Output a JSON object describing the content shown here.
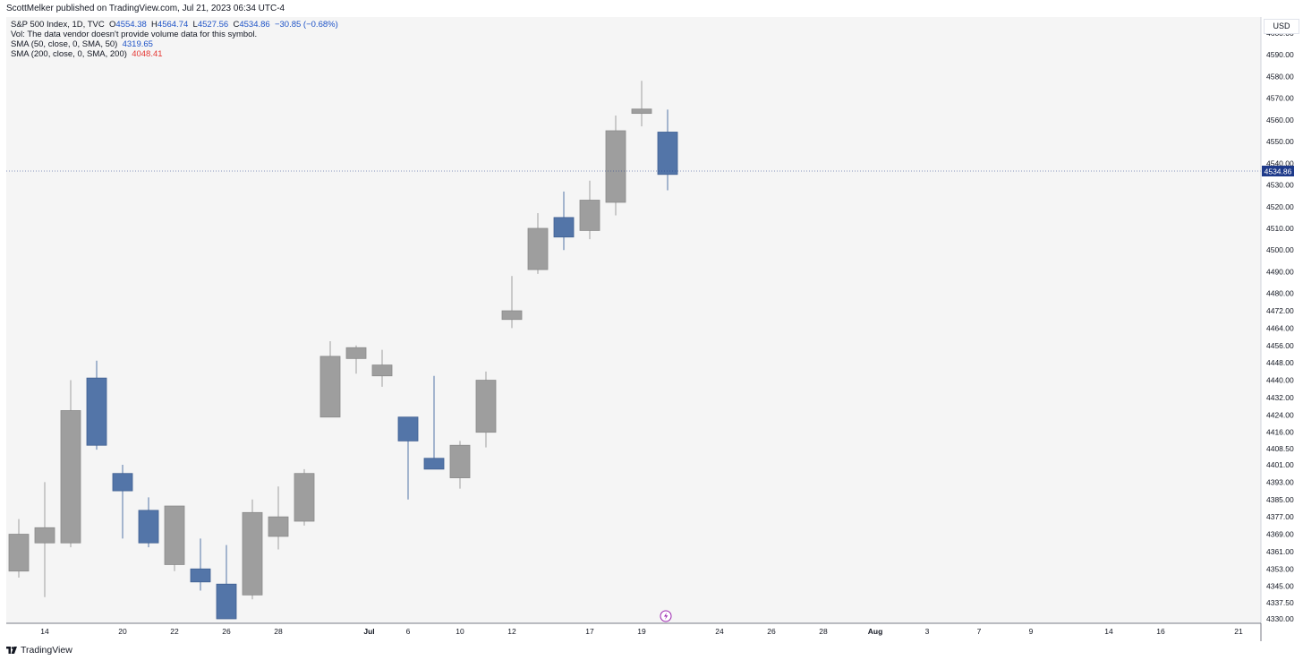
{
  "header": {
    "publisher": "ScottMelker published on TradingView.com, Jul 21, 2023 06:34 UTC-4"
  },
  "legend": {
    "symbol": "S&P 500 Index, 1D, TVC",
    "open_label": "O",
    "open": "4554.38",
    "high_label": "H",
    "high": "4564.74",
    "low_label": "L",
    "low": "4527.56",
    "close_label": "C",
    "close": "4534.86",
    "change": "−30.85 (−0.68%)",
    "vol_note": "Vol: The data vendor doesn't provide volume data for this symbol.",
    "sma50_label": "SMA (50, close, 0, SMA, 50)",
    "sma50_value": "4319.65",
    "sma200_label": "SMA (200, close, 0, SMA, 200)",
    "sma200_value": "4048.41"
  },
  "price_axis": {
    "currency": "USD",
    "current_price": "4534.86",
    "ticks": [
      "4600.00",
      "4590.00",
      "4580.00",
      "4570.00",
      "4560.00",
      "4550.00",
      "4540.00",
      "4530.00",
      "4520.00",
      "4510.00",
      "4500.00",
      "4490.00",
      "4480.00",
      "4472.00",
      "4464.00",
      "4456.00",
      "4448.00",
      "4440.00",
      "4432.00",
      "4424.00",
      "4416.00",
      "4408.50",
      "4401.00",
      "4393.00",
      "4385.00",
      "4377.00",
      "4369.00",
      "4361.00",
      "4353.00",
      "4345.00",
      "4337.50",
      "4330.00"
    ]
  },
  "time_axis": {
    "labels": [
      {
        "text": "14",
        "slot": 1
      },
      {
        "text": "20",
        "slot": 4
      },
      {
        "text": "22",
        "slot": 6
      },
      {
        "text": "26",
        "slot": 8
      },
      {
        "text": "28",
        "slot": 10
      },
      {
        "text": "Jul",
        "slot": 13.5
      },
      {
        "text": "6",
        "slot": 15
      },
      {
        "text": "10",
        "slot": 17
      },
      {
        "text": "12",
        "slot": 19
      },
      {
        "text": "17",
        "slot": 22
      },
      {
        "text": "19",
        "slot": 24
      },
      {
        "text": "24",
        "slot": 27
      },
      {
        "text": "26",
        "slot": 29
      },
      {
        "text": "28",
        "slot": 31
      },
      {
        "text": "Aug",
        "slot": 33
      },
      {
        "text": "3",
        "slot": 35
      },
      {
        "text": "7",
        "slot": 37
      },
      {
        "text": "9",
        "slot": 39
      },
      {
        "text": "14",
        "slot": 42
      },
      {
        "text": "16",
        "slot": 44
      },
      {
        "text": "21",
        "slot": 47
      }
    ]
  },
  "footer": {
    "brand": "TradingView"
  },
  "colors": {
    "up": "#9e9e9e",
    "down": "#5375a8",
    "bg": "#f5f5f5",
    "price_tag": "#1e3a8a"
  },
  "chart_data": {
    "type": "candlestick",
    "x_unit": "trading day",
    "ylim": [
      4330,
      4605
    ],
    "grid": false,
    "candles": [
      {
        "o": 4352,
        "h": 4376,
        "l": 4349,
        "c": 4369
      },
      {
        "o": 4365,
        "h": 4393,
        "l": 4340,
        "c": 4372
      },
      {
        "o": 4365,
        "h": 4440,
        "l": 4363,
        "c": 4426
      },
      {
        "o": 4441,
        "h": 4449,
        "l": 4408,
        "c": 4410
      },
      {
        "o": 4397,
        "h": 4401,
        "l": 4367,
        "c": 4389
      },
      {
        "o": 4380,
        "h": 4386,
        "l": 4363,
        "c": 4365
      },
      {
        "o": 4355,
        "h": 4382,
        "l": 4352,
        "c": 4382
      },
      {
        "o": 4353,
        "h": 4367,
        "l": 4343,
        "c": 4347
      },
      {
        "o": 4346,
        "h": 4364,
        "l": 4330,
        "c": 4330
      },
      {
        "o": 4341,
        "h": 4385,
        "l": 4339,
        "c": 4379
      },
      {
        "o": 4368,
        "h": 4391,
        "l": 4362,
        "c": 4377
      },
      {
        "o": 4375,
        "h": 4399,
        "l": 4373,
        "c": 4397
      },
      {
        "o": 4423,
        "h": 4458,
        "l": 4423,
        "c": 4451
      },
      {
        "o": 4450,
        "h": 4456,
        "l": 4443,
        "c": 4455
      },
      {
        "o": 4442,
        "h": 4454,
        "l": 4437,
        "c": 4447
      },
      {
        "o": 4423,
        "h": 4423,
        "l": 4385,
        "c": 4412
      },
      {
        "o": 4404,
        "h": 4442,
        "l": 4399,
        "c": 4399
      },
      {
        "o": 4395,
        "h": 4412,
        "l": 4390,
        "c": 4410
      },
      {
        "o": 4416,
        "h": 4444,
        "l": 4409,
        "c": 4440
      },
      {
        "o": 4468,
        "h": 4488,
        "l": 4464,
        "c": 4472
      },
      {
        "o": 4491,
        "h": 4517,
        "l": 4489,
        "c": 4510
      },
      {
        "o": 4515,
        "h": 4527,
        "l": 4500,
        "c": 4506
      },
      {
        "o": 4509,
        "h": 4532,
        "l": 4505,
        "c": 4523
      },
      {
        "o": 4522,
        "h": 4562,
        "l": 4516,
        "c": 4555
      },
      {
        "o": 4563,
        "h": 4578,
        "l": 4557,
        "c": 4565
      },
      {
        "o": 4554.38,
        "h": 4564.74,
        "l": 4527.56,
        "c": 4534.86
      }
    ]
  }
}
